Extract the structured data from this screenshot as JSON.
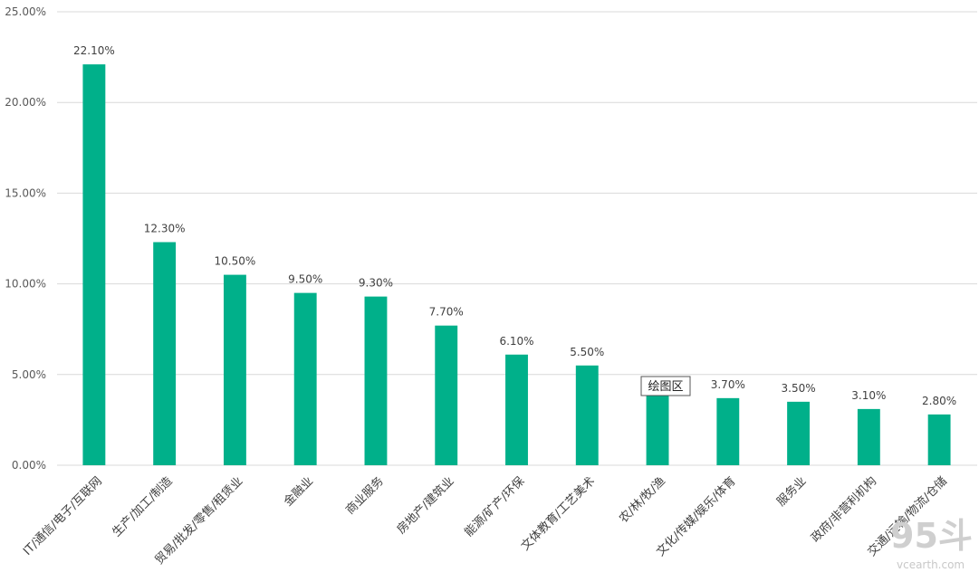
{
  "chart_data": {
    "type": "bar",
    "categories": [
      "IT/通信/电子/互联网",
      "生产/加工/制造",
      "贸易/批发/零售/租赁业",
      "金融业",
      "商业服务",
      "房地产/建筑业",
      "能源/矿产/环保",
      "文体教育/工艺美术",
      "农/林/牧/渔",
      "文化/传媒/娱乐/体育",
      "服务业",
      "政府/非营利机构",
      "交通/运输/物流/仓储"
    ],
    "values": [
      22.1,
      12.3,
      10.5,
      9.5,
      9.3,
      7.7,
      6.1,
      5.5,
      3.9,
      3.7,
      3.5,
      3.1,
      2.8
    ],
    "data_labels": [
      "22.10%",
      "12.30%",
      "10.50%",
      "9.50%",
      "9.30%",
      "7.70%",
      "6.10%",
      "5.50%",
      "",
      "3.70%",
      "3.50%",
      "3.10%",
      "2.80%"
    ],
    "y_ticks": [
      0,
      5,
      10,
      15,
      20,
      25
    ],
    "y_tick_labels": [
      "0.00%",
      "5.00%",
      "10.00%",
      "15.00%",
      "20.00%",
      "25.00%"
    ],
    "ylim": [
      0,
      25
    ],
    "grid": true,
    "bar_color": "#00b08a",
    "gridline_color": "#d9d9d9",
    "title": "",
    "xlabel": "",
    "ylabel": ""
  },
  "tooltip": {
    "text": "绘图区"
  },
  "watermark": {
    "big": "95斗",
    "small": "vcearth.com"
  }
}
